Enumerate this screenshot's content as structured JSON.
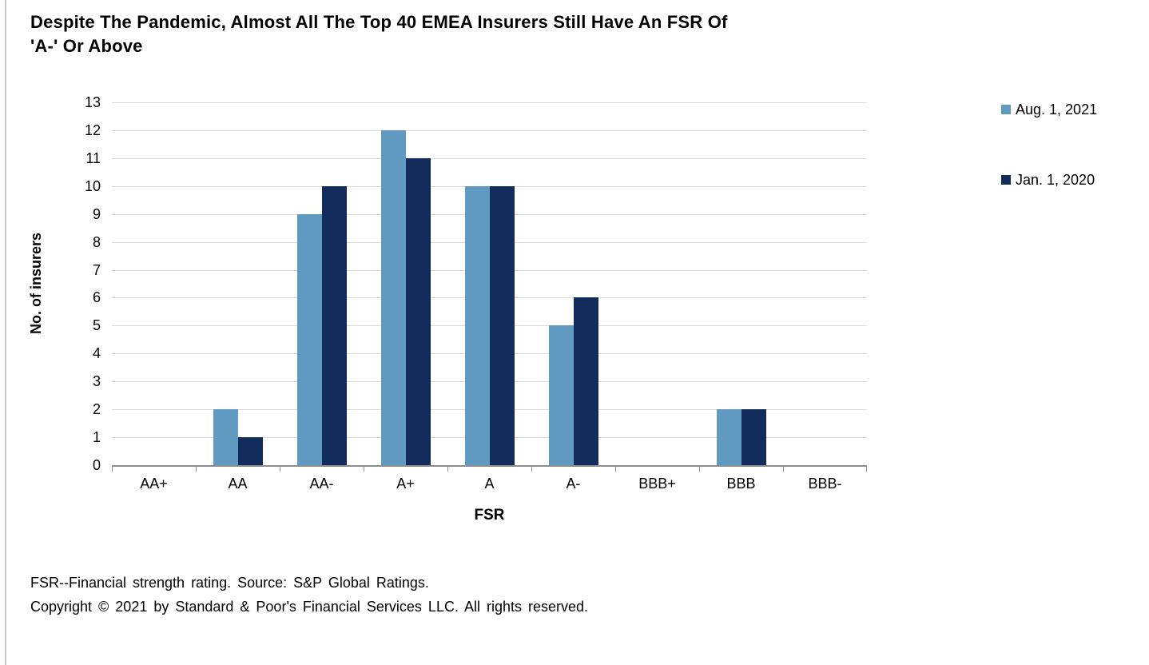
{
  "page": {
    "title_lines": [
      "Despite The Pandemic, Almost All The Top 40 EMEA Insurers Still Have An FSR Of",
      "'A-' Or Above"
    ]
  },
  "chart_data": {
    "type": "bar",
    "title": "Despite The Pandemic, Almost All The Top 40 EMEA Insurers Still Have An FSR Of 'A-' Or Above",
    "xlabel": "FSR",
    "ylabel": "No. of insurers",
    "categories": [
      "AA+",
      "AA",
      "AA-",
      "A+",
      "A",
      "A-",
      "BBB+",
      "BBB",
      "BBB-"
    ],
    "series": [
      {
        "name": "Aug. 1, 2021",
        "color": "#609AC1",
        "values": [
          0,
          2,
          9,
          12,
          10,
          5,
          0,
          2,
          0
        ]
      },
      {
        "name": "Jan. 1, 2020",
        "color": "#122D5B",
        "values": [
          0,
          1,
          10,
          11,
          10,
          6,
          0,
          2,
          0
        ]
      }
    ],
    "ylim": [
      0,
      13
    ],
    "ytick_step": 1,
    "grid": "horizontal",
    "legend_position": "right"
  },
  "footnotes": {
    "line1": "FSR--Financial strength rating. Source: S&P Global Ratings.",
    "line2": "Copyright © 2021 by Standard & Poor's Financial Services LLC. All rights reserved."
  },
  "colors": {
    "series_aug_2021": "#609AC1",
    "series_jan_2020": "#122D5B",
    "gridline": "#D9D9D9",
    "axis_line": "#8E8E8E",
    "left_rule": "#C9C9C9",
    "text": "#000000"
  }
}
